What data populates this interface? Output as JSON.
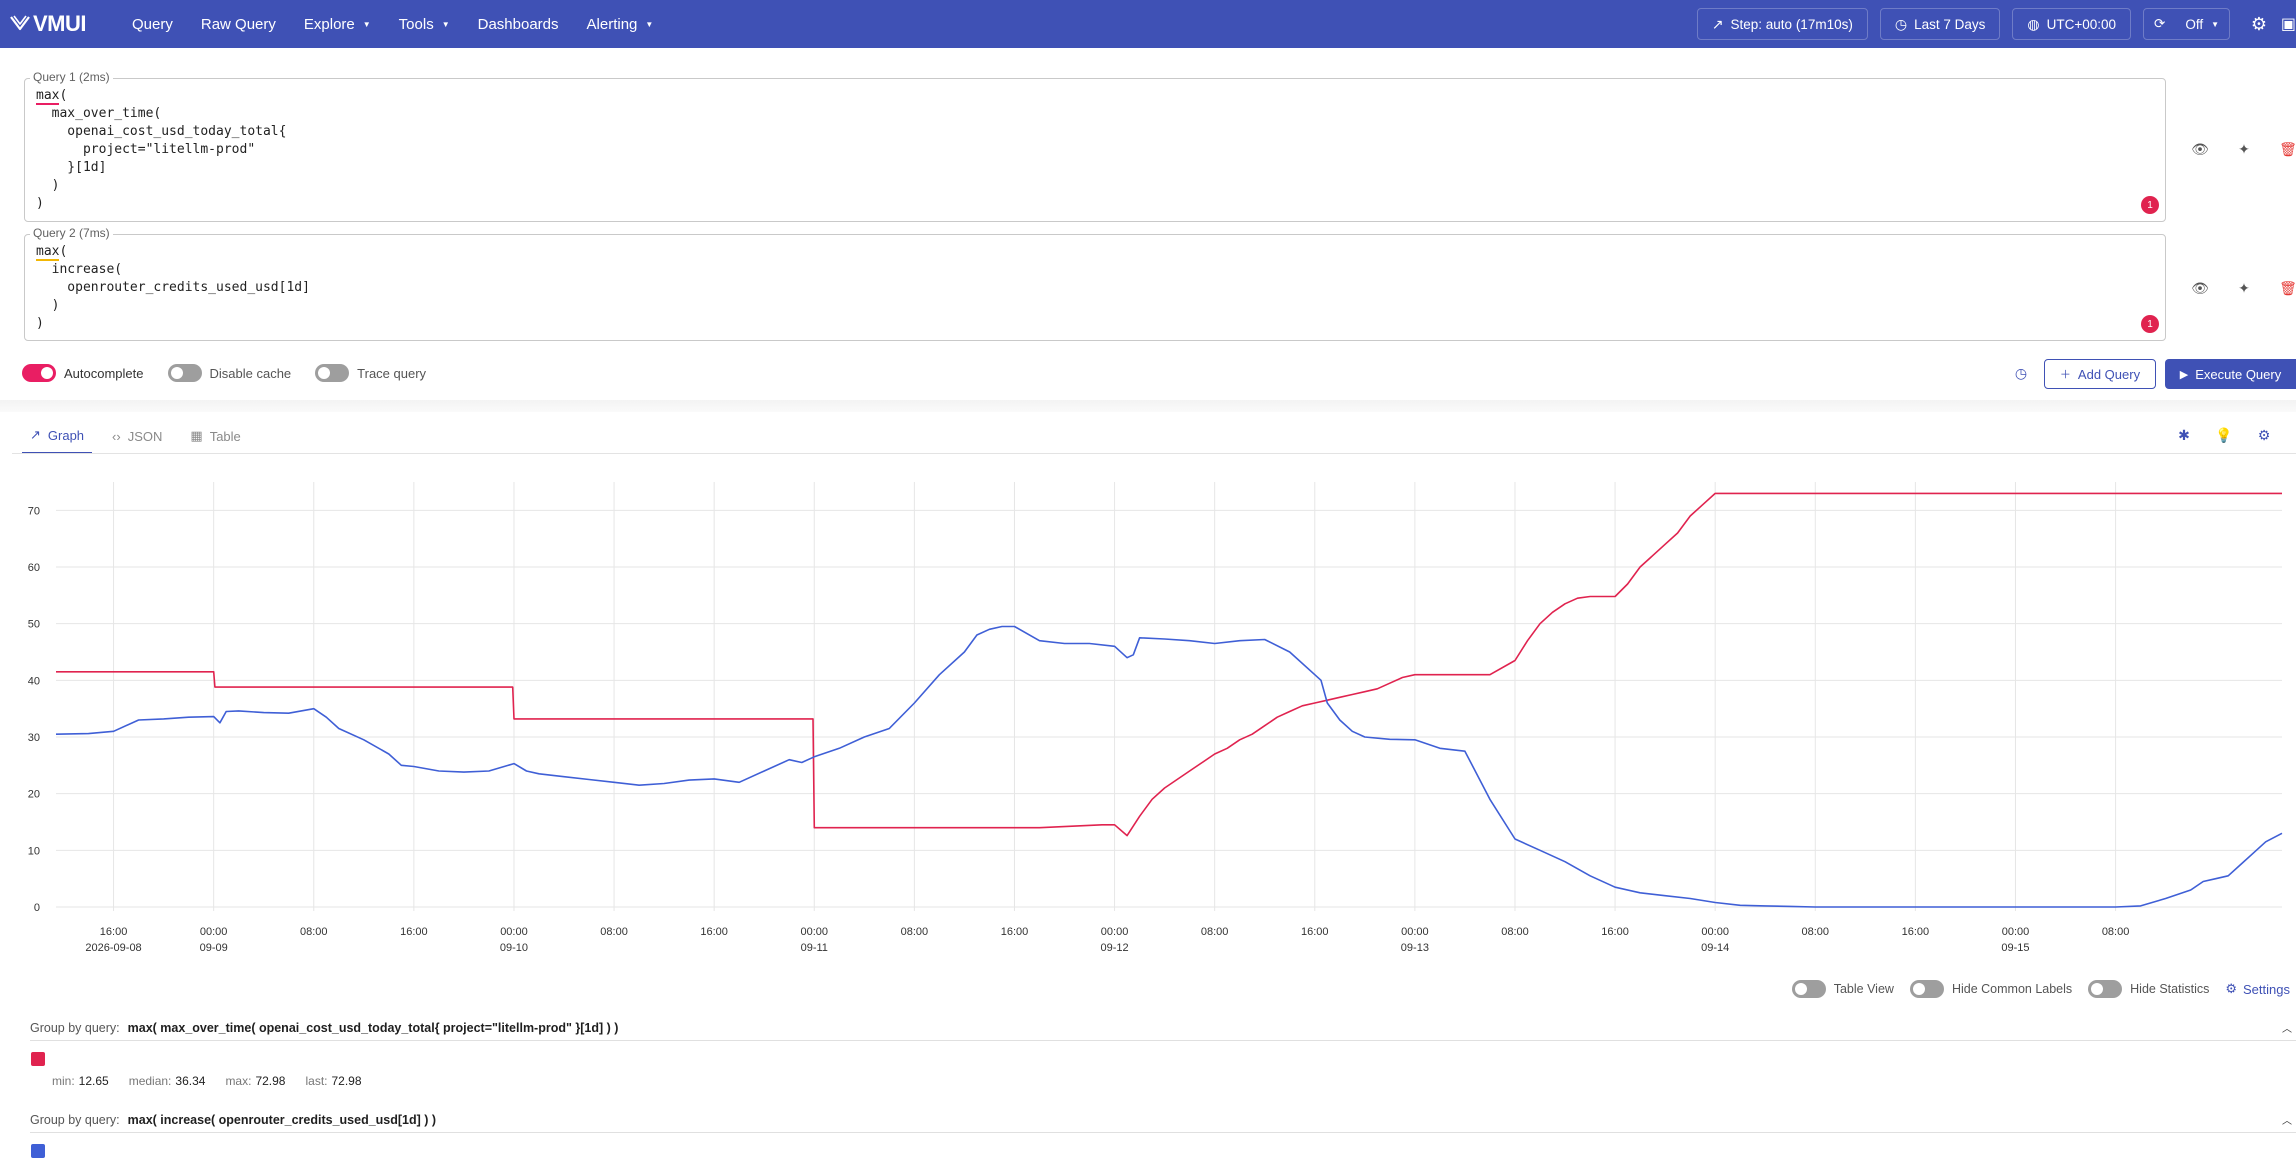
{
  "header": {
    "logo_text": "VMUI",
    "nav": [
      {
        "label": "Query"
      },
      {
        "label": "Raw Query"
      },
      {
        "label": "Explore"
      },
      {
        "label": "Tools"
      },
      {
        "label": "Dashboards"
      },
      {
        "label": "Alerting"
      }
    ],
    "step_label": "Step: auto (17m10s)",
    "time_range_label": "Last 7 Days",
    "timezone_label": "UTC+00:00",
    "refresh_label": "Off"
  },
  "queries": [
    {
      "legend": "Query 1 (2ms)",
      "fn": "max",
      "code_rest": "(\n  max_over_time(\n    openai_cost_usd_today_total{\n      project=\"litellm-prod\"\n    }[1d]\n  )\n)",
      "badge": "1"
    },
    {
      "legend": "Query 2 (7ms)",
      "fn": "max",
      "code_rest": "(\n  increase(\n    openrouter_credits_used_usd[1d]\n  )\n)",
      "badge": "1"
    }
  ],
  "controls": {
    "autocomplete": "Autocomplete",
    "disable_cache": "Disable cache",
    "trace_query": "Trace query",
    "add_query": "Add Query",
    "execute_query": "Execute Query"
  },
  "tabs": [
    {
      "label": "Graph"
    },
    {
      "label": "JSON"
    },
    {
      "label": "Table"
    }
  ],
  "chart_data": {
    "type": "line",
    "y_ticks": [
      "0",
      "10",
      "20",
      "30",
      "40",
      "50",
      "60",
      "70"
    ],
    "ylim": [
      0,
      75
    ],
    "x_ticks": [
      {
        "time": "16:00",
        "date": "2026-09-08"
      },
      {
        "time": "00:00",
        "date": "09-09"
      },
      {
        "time": "08:00",
        "date": ""
      },
      {
        "time": "16:00",
        "date": ""
      },
      {
        "time": "00:00",
        "date": "09-10"
      },
      {
        "time": "08:00",
        "date": ""
      },
      {
        "time": "16:00",
        "date": ""
      },
      {
        "time": "00:00",
        "date": "09-11"
      },
      {
        "time": "08:00",
        "date": ""
      },
      {
        "time": "16:00",
        "date": ""
      },
      {
        "time": "00:00",
        "date": "09-12"
      },
      {
        "time": "08:00",
        "date": ""
      },
      {
        "time": "16:00",
        "date": ""
      },
      {
        "time": "00:00",
        "date": "09-13"
      },
      {
        "time": "08:00",
        "date": ""
      },
      {
        "time": "16:00",
        "date": ""
      },
      {
        "time": "00:00",
        "date": "09-14"
      },
      {
        "time": "08:00",
        "date": ""
      },
      {
        "time": "16:00",
        "date": ""
      },
      {
        "time": "00:00",
        "date": "09-15"
      },
      {
        "time": "08:00",
        "date": ""
      }
    ],
    "x_hours_range": [
      -12.6,
      165.3
    ],
    "grid": true,
    "series": [
      {
        "color": "#e0234f",
        "x_hours": [
          -12.6,
          0.0,
          0.1,
          23.9,
          24.0,
          47.9,
          48.0,
          66.0,
          71.0,
          72.0,
          73.0,
          74.0,
          75.0,
          76.0,
          77.0,
          78.0,
          79.0,
          80.0,
          81.0,
          82.0,
          83.0,
          84.0,
          85.0,
          86.0,
          87.0,
          88.0,
          89.0,
          90.0,
          91.0,
          92.0,
          93.0,
          94.0,
          95.0,
          96.0,
          102.0,
          104.0,
          105.0,
          106.0,
          107.0,
          108.0,
          109.0,
          110.0,
          111.0,
          112.0,
          113.0,
          114.0,
          115.0,
          116.0,
          117.0,
          118.0,
          119.0,
          120.0,
          144.0,
          165.3
        ],
        "y": [
          41.5,
          41.5,
          38.8,
          38.8,
          33.2,
          33.2,
          14.0,
          14.0,
          14.5,
          14.5,
          12.6,
          16.0,
          19.0,
          21.0,
          22.5,
          24.0,
          25.5,
          27.0,
          28.0,
          29.5,
          30.5,
          32.0,
          33.5,
          34.5,
          35.5,
          36.0,
          36.5,
          37.0,
          37.5,
          38.0,
          38.5,
          39.5,
          40.5,
          41.0,
          41.0,
          43.5,
          47.0,
          50.0,
          52.0,
          53.5,
          54.5,
          54.8,
          54.8,
          54.8,
          57.0,
          60.0,
          62.0,
          64.0,
          66.0,
          69.0,
          71.0,
          72.98,
          72.98,
          72.98
        ],
        "stats": {
          "min": "12.65",
          "median": "36.34",
          "max": "72.98",
          "last": "72.98"
        },
        "group_label": "Group by query:",
        "group_query": "max( max_over_time( openai_cost_usd_today_total{ project=\"litellm-prod\" }[1d] ) )"
      },
      {
        "color": "#3f5fd6",
        "x_hours": [
          -12.6,
          -10.0,
          -8.0,
          -6.0,
          -4.0,
          -2.0,
          0.0,
          0.5,
          1.0,
          2.0,
          4.0,
          6.0,
          8.0,
          9.0,
          10.0,
          12.0,
          14.0,
          15.0,
          16.0,
          18.0,
          20.0,
          22.0,
          24.0,
          25.0,
          26.0,
          28.0,
          30.0,
          32.0,
          34.0,
          36.0,
          38.0,
          40.0,
          42.0,
          44.0,
          46.0,
          47.0,
          48.0,
          50.0,
          52.0,
          54.0,
          56.0,
          58.0,
          60.0,
          61.0,
          62.0,
          63.0,
          64.0,
          66.0,
          68.0,
          70.0,
          72.0,
          73.0,
          73.5,
          74.0,
          76.0,
          78.0,
          80.0,
          82.0,
          84.0,
          86.0,
          88.0,
          88.5,
          89.0,
          90.0,
          91.0,
          92.0,
          94.0,
          96.0,
          98.0,
          100.0,
          102.0,
          104.0,
          106.0,
          108.0,
          110.0,
          112.0,
          114.0,
          116.0,
          118.0,
          120.0,
          122.0,
          124.0,
          126.0,
          128.0,
          130.0,
          132.0,
          134.0,
          136.0,
          138.0,
          140.0,
          142.0,
          144.0,
          146.0,
          148.0,
          150.0,
          152.0,
          154.0,
          156.0,
          158.0,
          159.0,
          160.0,
          161.0,
          162.0,
          163.0,
          164.0,
          165.3
        ],
        "y": [
          30.5,
          30.6,
          31.0,
          33.0,
          33.2,
          33.5,
          33.6,
          32.5,
          34.5,
          34.6,
          34.3,
          34.2,
          35.0,
          33.5,
          31.5,
          29.5,
          27.0,
          25.0,
          24.8,
          24.0,
          23.8,
          24.0,
          25.3,
          24.0,
          23.5,
          23.0,
          22.5,
          22.0,
          21.5,
          21.8,
          22.4,
          22.6,
          22.0,
          24.0,
          26.0,
          25.5,
          26.5,
          28.0,
          30.0,
          31.5,
          36.0,
          41.0,
          45.0,
          48.0,
          49.0,
          49.5,
          49.5,
          47.0,
          46.5,
          46.5,
          46.0,
          44.0,
          44.5,
          47.5,
          47.3,
          47.0,
          46.5,
          47.0,
          47.2,
          45.0,
          41.0,
          40.0,
          36.0,
          33.0,
          31.0,
          30.0,
          29.6,
          29.5,
          28.0,
          27.5,
          19.0,
          12.0,
          10.0,
          8.0,
          5.5,
          3.5,
          2.5,
          2.0,
          1.5,
          0.8,
          0.3,
          0.2,
          0.1,
          0.0,
          0.0,
          0.0,
          0.0,
          0.0,
          0.0,
          0.0,
          0.0,
          0.0,
          0.0,
          0.0,
          0.0,
          0.0,
          0.2,
          1.5,
          3.0,
          4.5,
          5.0,
          5.5,
          7.5,
          9.5,
          11.5,
          13.0
        ],
        "group_label": "Group by query:",
        "group_query": "max( increase( openrouter_credits_used_usd[1d] ) )"
      }
    ]
  },
  "legend_settings": {
    "table_view": "Table View",
    "hide_common_labels": "Hide Common Labels",
    "hide_statistics": "Hide Statistics",
    "settings": "Settings"
  },
  "stat_labels": {
    "min": "min:",
    "median": "median:",
    "max": "max:",
    "last": "last:"
  }
}
